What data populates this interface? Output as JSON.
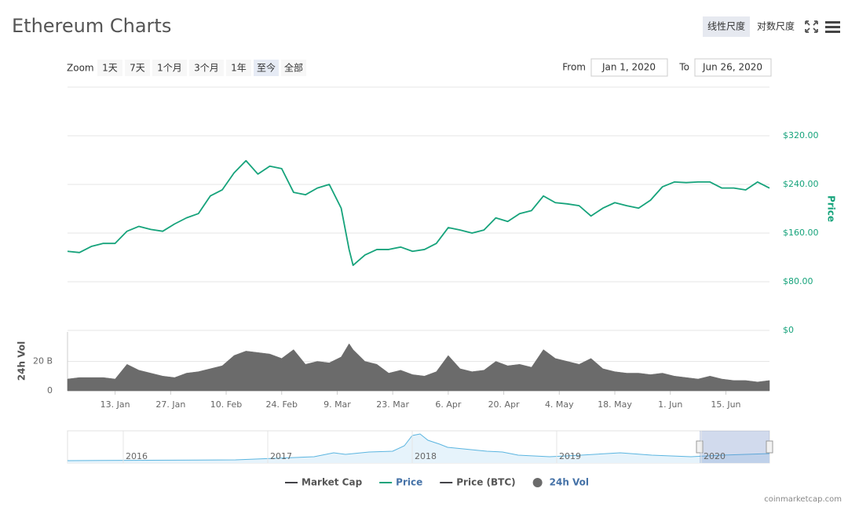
{
  "controls": {
    "scales": [
      "线性尺度",
      "对数尺度"
    ],
    "zoom_label": "Zoom",
    "zoom": [
      "1天",
      "7天",
      "1个月",
      "3个月",
      "1年",
      "至今",
      "全部"
    ],
    "from_label": "From",
    "from": "Jan 1, 2020",
    "to_label": "To",
    "to": "Jun 26, 2020"
  },
  "navigator": {
    "labels": [
      "2016",
      "2017",
      "2018",
      "2019",
      "2020"
    ]
  },
  "credit": "coinmarketcap.com",
  "chart_data": {
    "type": "line",
    "title": "Ethereum Charts",
    "y_label": "Price",
    "y2_label": "24h Vol",
    "x": [
      "2020-01-01",
      "2020-01-04",
      "2020-01-07",
      "2020-01-10",
      "2020-01-13",
      "2020-01-16",
      "2020-01-19",
      "2020-01-22",
      "2020-01-25",
      "2020-01-28",
      "2020-01-31",
      "2020-02-03",
      "2020-02-06",
      "2020-02-09",
      "2020-02-12",
      "2020-02-15",
      "2020-02-18",
      "2020-02-21",
      "2020-02-24",
      "2020-02-27",
      "2020-03-01",
      "2020-03-04",
      "2020-03-07",
      "2020-03-10",
      "2020-03-12",
      "2020-03-13",
      "2020-03-16",
      "2020-03-19",
      "2020-03-22",
      "2020-03-25",
      "2020-03-28",
      "2020-03-31",
      "2020-04-03",
      "2020-04-06",
      "2020-04-09",
      "2020-04-12",
      "2020-04-15",
      "2020-04-18",
      "2020-04-21",
      "2020-04-24",
      "2020-04-27",
      "2020-04-30",
      "2020-05-03",
      "2020-05-06",
      "2020-05-09",
      "2020-05-12",
      "2020-05-15",
      "2020-05-18",
      "2020-05-21",
      "2020-05-24",
      "2020-05-27",
      "2020-05-30",
      "2020-06-02",
      "2020-06-05",
      "2020-06-08",
      "2020-06-11",
      "2020-06-14",
      "2020-06-17",
      "2020-06-20",
      "2020-06-23",
      "2020-06-26"
    ],
    "xlim": [
      "2020-01-01",
      "2020-06-26"
    ],
    "xticks": [
      {
        "value": "2020-01-13",
        "label": "13. Jan"
      },
      {
        "value": "2020-01-27",
        "label": "27. Jan"
      },
      {
        "value": "2020-02-10",
        "label": "10. Feb"
      },
      {
        "value": "2020-02-24",
        "label": "24. Feb"
      },
      {
        "value": "2020-03-09",
        "label": "9. Mar"
      },
      {
        "value": "2020-03-23",
        "label": "23. Mar"
      },
      {
        "value": "2020-04-06",
        "label": "6. Apr"
      },
      {
        "value": "2020-04-20",
        "label": "20. Apr"
      },
      {
        "value": "2020-05-04",
        "label": "4. May"
      },
      {
        "value": "2020-05-18",
        "label": "18. May"
      },
      {
        "value": "2020-06-01",
        "label": "1. Jun"
      },
      {
        "value": "2020-06-15",
        "label": "15. Jun"
      }
    ],
    "ylim": [
      0,
      400
    ],
    "yticks": [
      {
        "value": 0,
        "label": "$0"
      },
      {
        "value": 80,
        "label": "$80.00"
      },
      {
        "value": 160,
        "label": "$160.00"
      },
      {
        "value": 240,
        "label": "$240.00"
      },
      {
        "value": 320,
        "label": "$320.00"
      }
    ],
    "y2lim": [
      0,
      40
    ],
    "y2ticks": [
      0,
      {
        "value": 20,
        "label": "20 B"
      }
    ],
    "grid": true,
    "legend": "bottom",
    "series": [
      {
        "name": "Market Cap",
        "color": "#434348",
        "visible": false
      },
      {
        "name": "Price",
        "color": "#16a37b",
        "visible": true,
        "values": [
          130,
          128,
          138,
          143,
          143,
          163,
          171,
          166,
          163,
          175,
          185,
          192,
          221,
          231,
          259,
          279,
          257,
          270,
          266,
          227,
          223,
          234,
          240,
          201,
          133,
          107,
          124,
          133,
          133,
          137,
          130,
          133,
          143,
          169,
          165,
          160,
          165,
          185,
          179,
          192,
          197,
          221,
          210,
          208,
          205,
          188,
          201,
          210,
          205,
          201,
          214,
          236,
          244,
          243,
          244,
          244,
          234,
          234,
          231,
          244,
          234
        ]
      },
      {
        "name": "Price (BTC)",
        "color": "#434348",
        "visible": false
      },
      {
        "name": "24h Vol",
        "color": "#6b6b6b",
        "visible": true,
        "axis": "y2",
        "values": [
          8,
          9,
          9,
          9,
          8,
          18,
          14,
          12,
          10,
          9,
          12,
          13,
          15,
          17,
          24,
          27,
          26,
          25,
          22,
          28,
          18,
          20,
          19,
          23,
          32,
          28,
          20,
          18,
          12,
          14,
          11,
          10,
          13,
          24,
          15,
          13,
          14,
          20,
          17,
          18,
          16,
          28,
          22,
          20,
          18,
          22,
          15,
          13,
          12,
          12,
          11,
          12,
          10,
          9,
          8,
          10,
          8,
          7,
          7,
          6,
          7
        ]
      }
    ]
  }
}
